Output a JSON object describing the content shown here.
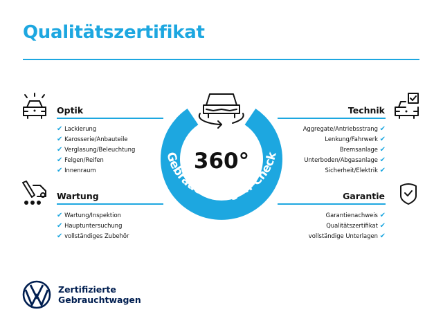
{
  "title": "Qualitätszertifikat",
  "badge": {
    "value": "360°",
    "arc_text": "Gebrauchtwagen-Check"
  },
  "sections": {
    "optik": {
      "title": "Optik",
      "items": [
        "Lackierung",
        "Karosserie/Anbauteile",
        "Verglasung/Beleuchtung",
        "Felgen/Reifen",
        "Innenraum"
      ]
    },
    "wartung": {
      "title": "Wartung",
      "items": [
        "Wartung/Inspektion",
        "Hauptuntersuchung",
        "vollständiges Zubehör"
      ]
    },
    "technik": {
      "title": "Technik",
      "items": [
        "Aggregate/Antriebsstrang",
        "Lenkung/Fahrwerk",
        "Bremsanlage",
        "Unterboden/Abgasanlage",
        "Sicherheit/Elektrik"
      ]
    },
    "garantie": {
      "title": "Garantie",
      "items": [
        "Garantienachweis",
        "Qualitätszertifikat",
        "vollständige Unterlagen"
      ]
    }
  },
  "check_icon": "✔",
  "logo": {
    "line1": "Zertifizierte",
    "line2": "Gebrauchtwagen"
  },
  "colors": {
    "accent": "#1da7e0",
    "brand": "#001e50"
  }
}
